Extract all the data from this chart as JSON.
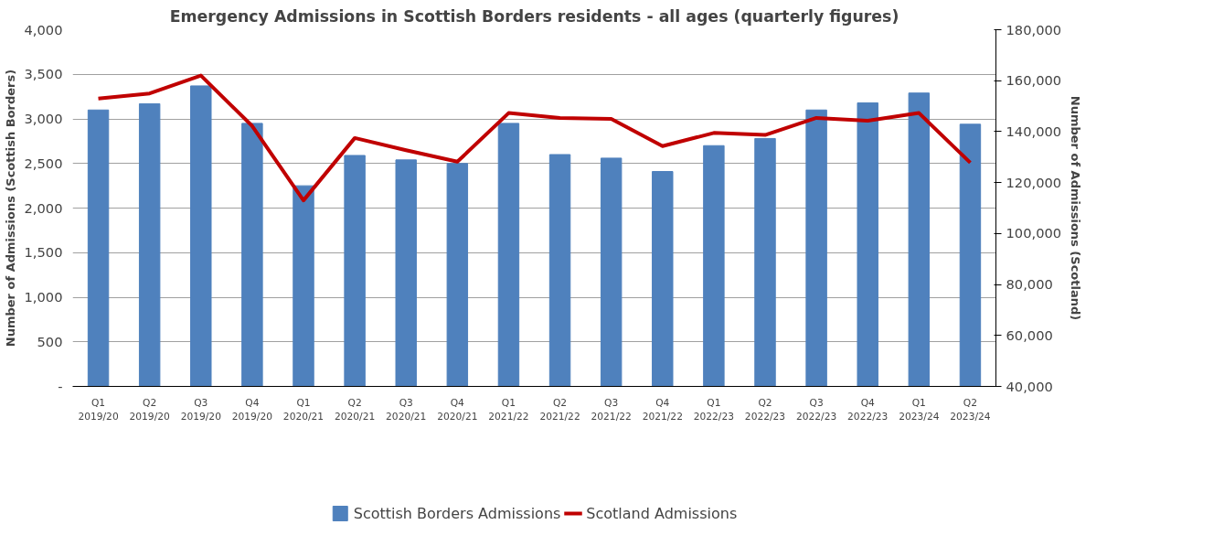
{
  "chart_data": {
    "type": "bar",
    "title": "Emergency Admissions in Scottish Borders residents - all ages (quarterly figures)",
    "ylabel": "Number of Admissions (Scottish Borders)",
    "y2label": "Number of Admissions (Scotland)",
    "categories": [
      "Q1\n2019/20",
      "Q2\n2019/20",
      "Q3\n2019/20",
      "Q4\n2019/20",
      "Q1\n2020/21",
      "Q2\n2020/21",
      "Q3\n2020/21",
      "Q4\n2020/21",
      "Q1\n2021/22",
      "Q2\n2021/22",
      "Q3\n2021/22",
      "Q4\n2021/22",
      "Q1\n2022/23",
      "Q2\n2022/23",
      "Q3\n2022/23",
      "Q4\n2022/23",
      "Q1\n2023/24",
      "Q2\n2023/24"
    ],
    "series": [
      {
        "name": "Scottish Borders Admissions",
        "color": "#4f81bd",
        "values": [
          3100,
          3170,
          3370,
          2950,
          2250,
          2590,
          2540,
          2500,
          2950,
          2600,
          2560,
          2410,
          2700,
          2780,
          3100,
          3180,
          3290,
          2940
        ]
      },
      {
        "name": "Scotland Admissions",
        "type": "line",
        "axis": "y2",
        "color": "#c00000",
        "values": [
          153000,
          155000,
          162000,
          142200,
          113000,
          137500,
          132700,
          128200,
          147300,
          145400,
          145000,
          134300,
          139500,
          138700,
          145400,
          144300,
          147300,
          127800
        ]
      }
    ],
    "ylim": [
      0,
      4000
    ],
    "yticks": [
      {
        "value": 0,
        "label": "-"
      },
      {
        "value": 500,
        "label": "500"
      },
      {
        "value": 1000,
        "label": "1,000"
      },
      {
        "value": 1500,
        "label": "1,500"
      },
      {
        "value": 2000,
        "label": "2,000"
      },
      {
        "value": 2500,
        "label": "2,500"
      },
      {
        "value": 3000,
        "label": "3,000"
      },
      {
        "value": 3500,
        "label": "3,500"
      },
      {
        "value": 4000,
        "label": "4,000"
      }
    ],
    "y2lim": [
      40000,
      180000
    ],
    "y2ticks": [
      {
        "value": 40000,
        "label": "40,000"
      },
      {
        "value": 60000,
        "label": "60,000"
      },
      {
        "value": 80000,
        "label": "80,000"
      },
      {
        "value": 100000,
        "label": "100,000"
      },
      {
        "value": 120000,
        "label": "120,000"
      },
      {
        "value": 140000,
        "label": "140,000"
      },
      {
        "value": 160000,
        "label": "160,000"
      },
      {
        "value": 180000,
        "label": "180,000"
      }
    ],
    "grid": "y",
    "legend": "bottom"
  }
}
